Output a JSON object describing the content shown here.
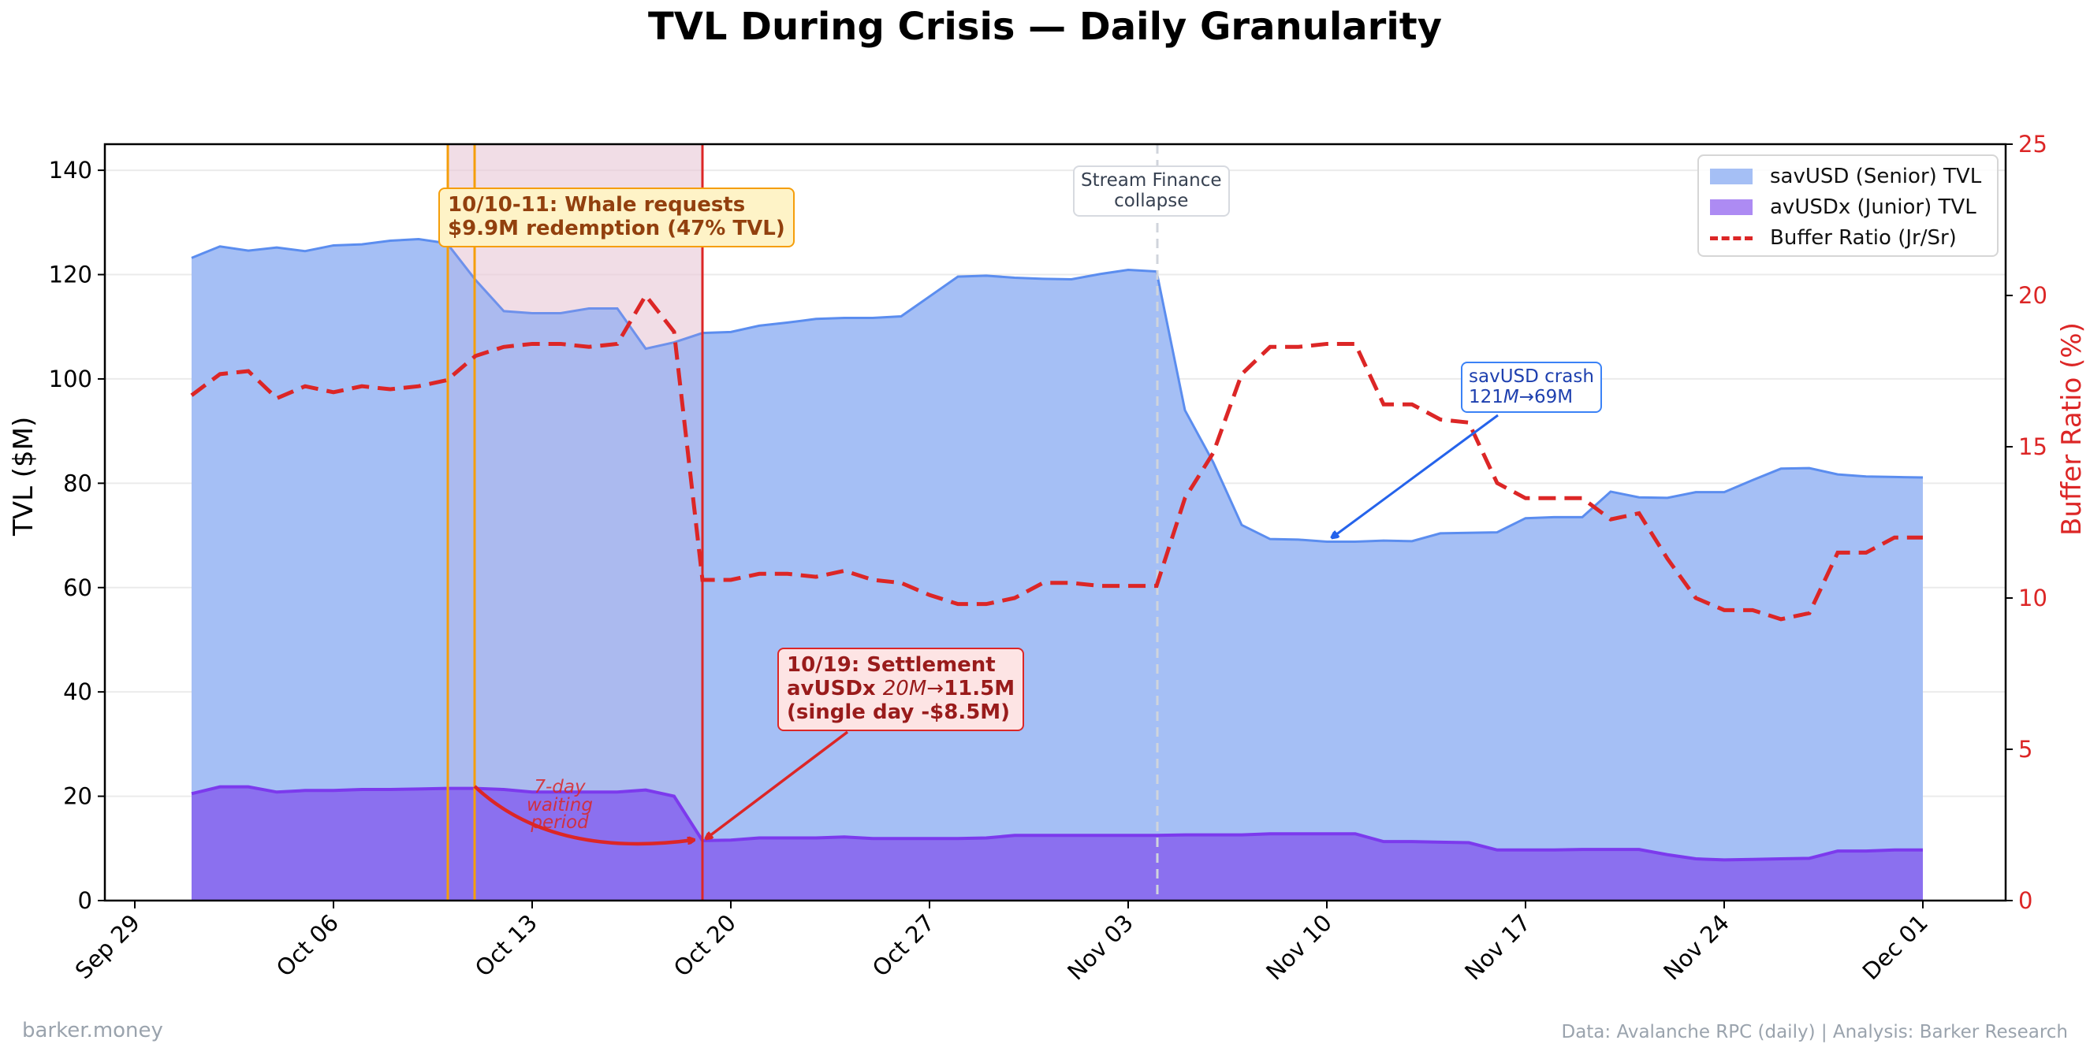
{
  "footer": {
    "brand": "barker.money",
    "source": "Data: Avalanche RPC (daily) | Analysis: Barker Research"
  },
  "colors": {
    "senior_fill": "#a5bff5",
    "senior_line": "#5b8def",
    "junior_fill": "#8b70ef",
    "junior_line": "#7c3aed",
    "ratio": "#dc2626",
    "whale_line": "#f59e0b",
    "settle_line": "#dc2626",
    "window_fill": "#f8d7d7",
    "stream_line": "#cbd0d8",
    "crash_arrow": "#2563eb"
  },
  "chart_data": {
    "type": "area",
    "title": "TVL During Crisis — Daily Granularity",
    "xlabel": "",
    "ylabel": "TVL ($M)",
    "y2label": "Buffer Ratio (%)",
    "ylim": [
      0,
      145
    ],
    "y2lim": [
      0,
      25
    ],
    "yticks": [
      "0",
      "20",
      "40",
      "60",
      "80",
      "100",
      "120",
      "140"
    ],
    "y2ticks": [
      "0",
      "5",
      "10",
      "15",
      "20",
      "25"
    ],
    "xticks": [
      "Sep 29",
      "Oct 06",
      "Oct 13",
      "Oct 20",
      "Oct 27",
      "Nov 03",
      "Nov 10",
      "Nov 17",
      "Nov 24",
      "Dec 01"
    ],
    "x_start": "Oct 01",
    "grid": true,
    "legend_position": "top-right",
    "series": [
      {
        "name": "savUSD (Senior) TVL",
        "kind": "area",
        "values": [
          123.2,
          125.4,
          124.6,
          125.2,
          124.5,
          125.6,
          125.8,
          126.5,
          126.8,
          126.0,
          119.0,
          113.0,
          112.6,
          112.6,
          113.5,
          113.5,
          105.8,
          107.0,
          108.8,
          109.0,
          110.2,
          110.8,
          111.5,
          111.7,
          111.7,
          112.0,
          115.8,
          119.6,
          119.8,
          119.4,
          119.2,
          119.1,
          120.1,
          120.9,
          120.6,
          94.0,
          84.0,
          72.0,
          69.3,
          69.2,
          68.8,
          68.8,
          69.0,
          68.9,
          70.4,
          70.5,
          70.6,
          73.3,
          73.5,
          73.5,
          78.4,
          77.3,
          77.2,
          78.3,
          78.3,
          80.6,
          82.8,
          82.9,
          81.7,
          81.3,
          81.2,
          81.1
        ]
      },
      {
        "name": "avUSDx (Junior) TVL",
        "kind": "area",
        "values": [
          20.5,
          21.8,
          21.8,
          20.8,
          21.1,
          21.1,
          21.3,
          21.3,
          21.4,
          21.5,
          21.5,
          21.3,
          20.8,
          20.8,
          20.8,
          20.8,
          21.2,
          20.0,
          11.5,
          11.6,
          12.0,
          12.0,
          12.0,
          12.2,
          11.9,
          11.9,
          11.9,
          11.9,
          12.0,
          12.5,
          12.5,
          12.5,
          12.5,
          12.5,
          12.5,
          12.6,
          12.6,
          12.6,
          12.8,
          12.8,
          12.8,
          12.8,
          11.3,
          11.3,
          11.2,
          11.1,
          9.7,
          9.7,
          9.7,
          9.8,
          9.8,
          9.8,
          8.8,
          8.0,
          7.8,
          7.9,
          8.0,
          8.1,
          9.5,
          9.5,
          9.7,
          9.7
        ]
      },
      {
        "name": "Buffer Ratio (Jr/Sr)",
        "kind": "line",
        "axis": "right",
        "values": [
          16.7,
          17.4,
          17.5,
          16.6,
          17.0,
          16.8,
          17.0,
          16.9,
          17.0,
          17.2,
          18.0,
          18.3,
          18.4,
          18.4,
          18.3,
          18.4,
          20.0,
          18.8,
          10.6,
          10.6,
          10.8,
          10.8,
          10.7,
          10.9,
          10.6,
          10.5,
          10.1,
          9.8,
          9.8,
          10.0,
          10.5,
          10.5,
          10.4,
          10.4,
          10.4,
          13.3,
          14.8,
          17.4,
          18.3,
          18.3,
          18.4,
          18.4,
          16.4,
          16.4,
          15.9,
          15.8,
          13.8,
          13.3,
          13.3,
          13.3,
          12.6,
          12.8,
          11.3,
          10.0,
          9.6,
          9.6,
          9.3,
          9.5,
          11.5,
          11.5,
          12.0,
          12.0
        ]
      }
    ],
    "events": {
      "whale_days": [
        11,
        12
      ],
      "window_end_day": 20.5,
      "settlement_day": 20.5,
      "stream_day": 37
    },
    "annotations": {
      "whale": [
        "10/10-11: Whale requests",
        "$9.9M redemption (47% TVL)"
      ],
      "settlement_line1": "10/19: Settlement",
      "settlement_line2_a": "avUSDx ",
      "settlement_line2_b": "20M→",
      "settlement_line2_c": "11.5M",
      "settlement_line3": "(single day -$8.5M)",
      "stream": [
        "Stream Finance",
        "collapse"
      ],
      "crash_line1": "savUSD crash",
      "crash_line2_a": "121",
      "crash_line2_b": "M",
      "crash_line2_c": "→69M",
      "waiting": [
        "7-day",
        "waiting",
        "period"
      ]
    }
  }
}
